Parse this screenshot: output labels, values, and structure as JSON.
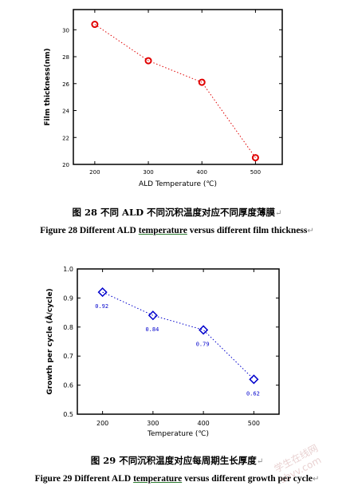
{
  "figures": [
    {
      "caption_cn": "图 28  不同 ALD 不同沉积温度对应不同厚度薄膜",
      "caption_en_prefix": "Figure 28 Different ALD ",
      "caption_en_underlined": "temperature",
      "caption_en_suffix": " versus different film thickness",
      "return_mark": "↵",
      "chart_data": {
        "type": "scatter",
        "marker": "circle",
        "marker_color": "#e00000",
        "line_color": "#e00000",
        "line_style": "dotted",
        "x": [
          200,
          300,
          400,
          500
        ],
        "series": [
          {
            "values": [
              30.4,
              27.7,
              26.1,
              20.5
            ]
          }
        ],
        "xlabel": "ALD Temperature (℃)",
        "ylabel": "Film thickness(nm)",
        "xlim": [
          160,
          550
        ],
        "ylim": [
          20,
          31.5
        ],
        "xticks": [
          "200",
          "300",
          "400",
          "500"
        ],
        "yticks": [
          "20",
          "22",
          "24",
          "26",
          "28",
          "30"
        ],
        "grid": false
      }
    },
    {
      "caption_cn": "图  29  不同沉积温度对应每周期生长厚度",
      "caption_en_prefix": "Figure 29 Different ALD ",
      "caption_en_underlined": "temperature",
      "caption_en_suffix": " versus different growth per cycle",
      "return_mark": "↵",
      "chart_data": {
        "type": "scatter",
        "marker": "diamond",
        "marker_color": "#0000cc",
        "line_color": "#0000cc",
        "line_style": "dotted",
        "x": [
          200,
          300,
          400,
          500
        ],
        "series": [
          {
            "values": [
              0.92,
              0.84,
              0.79,
              0.62
            ]
          }
        ],
        "data_labels": [
          "0.92",
          "0.84",
          "0.79",
          "0.62"
        ],
        "xlabel": "Temperature (℃)",
        "ylabel": "Growth per cycle (Å/cycle)",
        "xlim": [
          150,
          550
        ],
        "ylim": [
          0.5,
          1.0
        ],
        "xticks": [
          "200",
          "300",
          "400",
          "500"
        ],
        "yticks": [
          "0.5",
          "0.6",
          "0.7",
          "0.8",
          "0.9",
          "1.0"
        ],
        "grid": false
      }
    }
  ],
  "watermark_text": "学生在线网 sbvv.com"
}
